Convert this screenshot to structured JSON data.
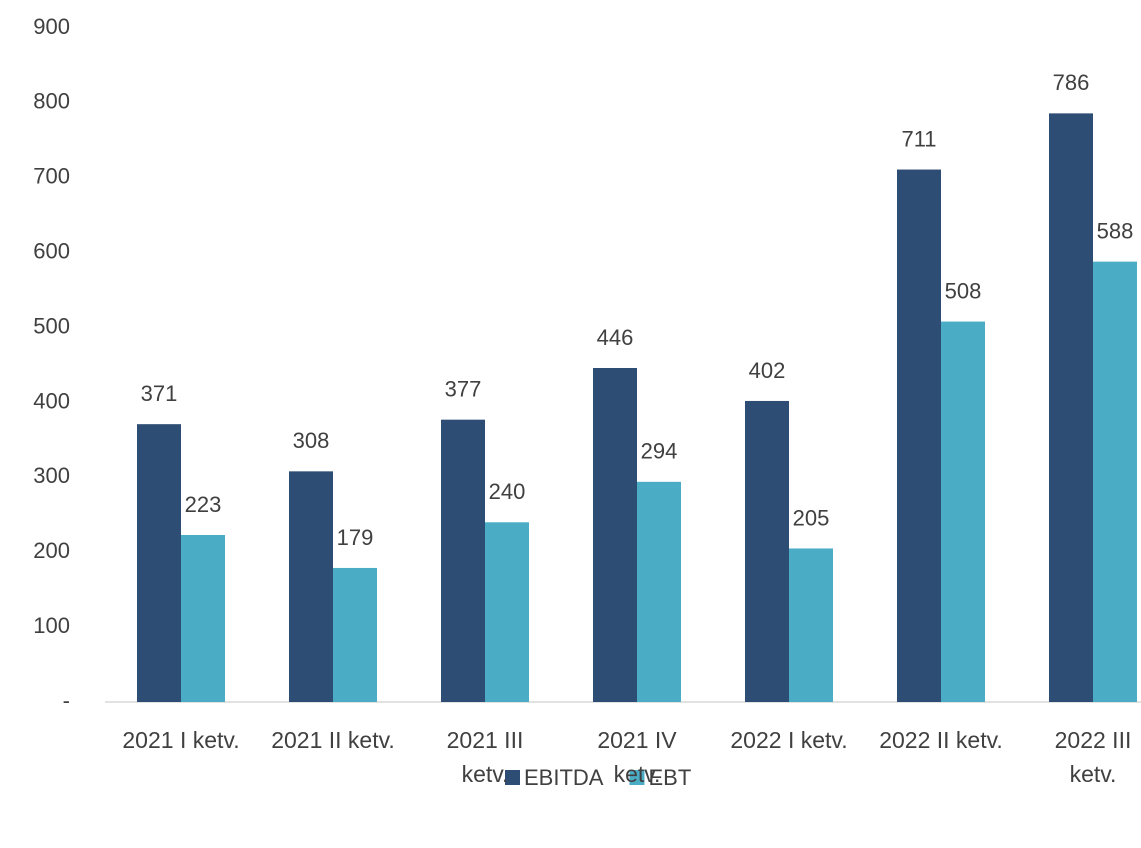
{
  "chart_data": {
    "type": "bar",
    "categories": [
      "2021 I ketv.",
      "2021 II ketv.",
      "2021 III ketv.",
      "2021 IV ketv.",
      "2022 I ketv.",
      "2022 II ketv.",
      "2022 III ketv."
    ],
    "series": [
      {
        "name": "EBITDA",
        "color": "#2e4d74",
        "values": [
          371,
          308,
          377,
          446,
          402,
          711,
          786
        ]
      },
      {
        "name": "EBT",
        "color": "#4bacc6",
        "values": [
          223,
          179,
          240,
          294,
          205,
          508,
          588
        ]
      }
    ],
    "ylim": [
      0,
      900
    ],
    "yticks": [
      {
        "value": 0,
        "label": "-"
      },
      100,
      200,
      300,
      400,
      500,
      600,
      700,
      800,
      900
    ],
    "grid": false,
    "legend": "bottom"
  }
}
